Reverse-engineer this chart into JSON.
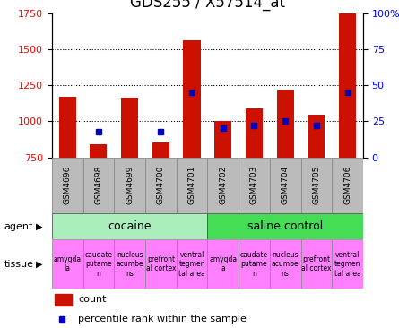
{
  "title": "GDS255 / X57514_at",
  "samples": [
    "GSM4696",
    "GSM4698",
    "GSM4699",
    "GSM4700",
    "GSM4701",
    "GSM4702",
    "GSM4703",
    "GSM4704",
    "GSM4705",
    "GSM4706"
  ],
  "counts": [
    1170,
    840,
    1165,
    855,
    1560,
    1000,
    1090,
    1220,
    1045,
    1745
  ],
  "percentiles": [
    null,
    18,
    null,
    18,
    45,
    20,
    22,
    25,
    22,
    45
  ],
  "ylim": [
    750,
    1750
  ],
  "yticks": [
    750,
    1000,
    1250,
    1500,
    1750
  ],
  "y2ticks": [
    0,
    25,
    50,
    75,
    100
  ],
  "y2labels": [
    "0",
    "25",
    "50",
    "75",
    "100%"
  ],
  "bar_color": "#cc1100",
  "dot_color": "#0000bb",
  "bar_bottom": 750,
  "agent_cocaine_label": "cocaine",
  "agent_saline_label": "saline control",
  "agent_bg_cocaine": "#aaeebb",
  "agent_bg_saline": "#44dd55",
  "tissue_labels_cocaine": [
    "amygda\nla",
    "caudate\nputame\nn",
    "nucleus\nacumbe\nns",
    "prefront\nal cortex",
    "ventral\ntegmen\ntal area"
  ],
  "tissue_labels_saline": [
    "amygda\na",
    "caudate\nputame\nn",
    "nucleus\nacumbe\nns",
    "prefront\nal cortex",
    "ventral\ntegmen\ntal area"
  ],
  "tissue_bg_colors_cocaine": [
    "#ff80ff",
    "#ff80ff",
    "#ff80ff",
    "#ff80ff",
    "#ff80ff"
  ],
  "tissue_bg_colors_saline": [
    "#ff80ff",
    "#ff80ff",
    "#ff80ff",
    "#ff80ff",
    "#ff80ff"
  ],
  "xticklabel_bg": "#bbbbbb",
  "legend_count_label": "count",
  "legend_pct_label": "percentile rank within the sample",
  "title_fontsize": 12,
  "tick_fontsize": 8,
  "sample_fontsize": 6.5,
  "tissue_fontsize": 5.5,
  "agent_fontsize": 9,
  "legend_fontsize": 8
}
